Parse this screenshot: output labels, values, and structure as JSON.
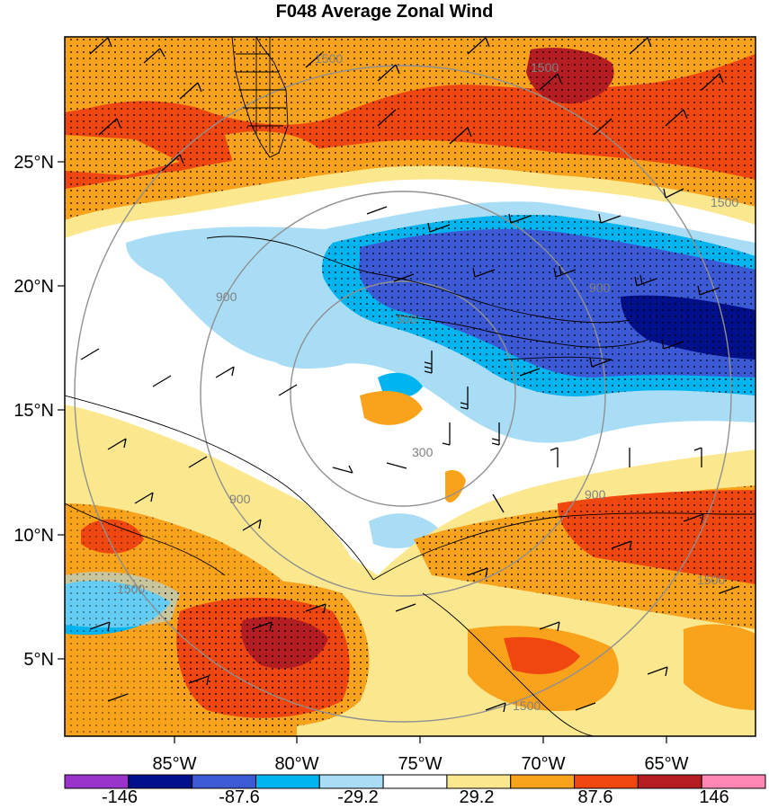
{
  "title": "F048 Average Zonal Wind",
  "colors": {
    "bins": [
      "#9933cc",
      "#000f8a",
      "#3d5ad6",
      "#00b4f0",
      "#a8ddf5",
      "#ffffff",
      "#fbe88e",
      "#f9a21b",
      "#f0460f",
      "#b41e23",
      "#ff85b4"
    ],
    "frame": "#000000",
    "range_ring": "#909090",
    "barb": "#000000",
    "coast": "#000000"
  },
  "latitude_labels": [
    "25°N",
    "20°N",
    "15°N",
    "10°N",
    "5°N"
  ],
  "longitude_labels": [
    "85°W",
    "80°W",
    "75°W",
    "70°W",
    "65°W"
  ],
  "colorbar": {
    "labels": [
      "-146",
      "-87.6",
      "-29.2",
      "29.2",
      "87.6",
      "146"
    ]
  },
  "range_ring_labels": [
    "300",
    "300",
    "900",
    "900",
    "900",
    "900",
    "1500",
    "1500",
    "1500",
    "1500",
    "1500",
    "1500"
  ]
}
